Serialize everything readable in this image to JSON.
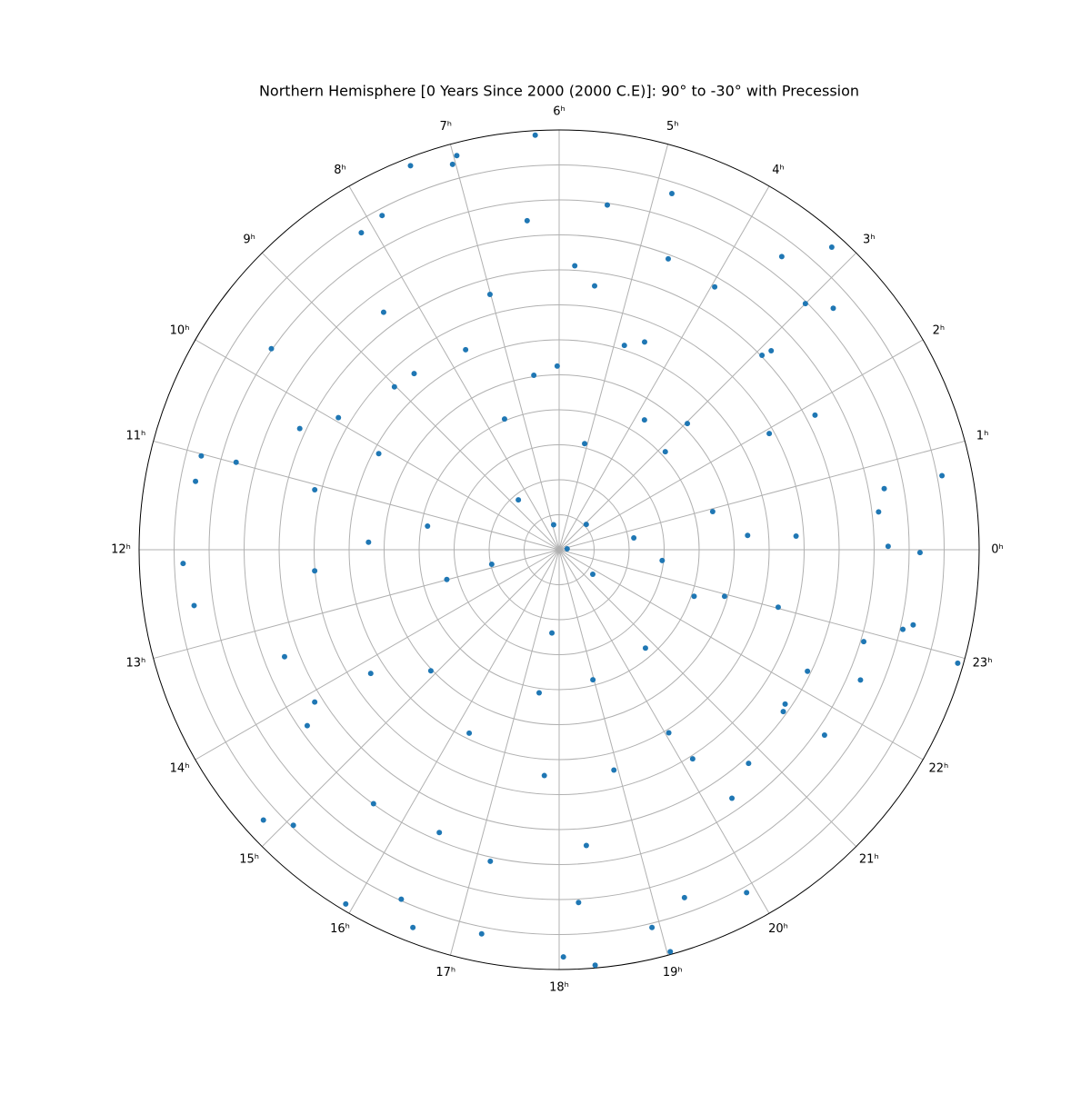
{
  "chart_data": {
    "type": "scatter",
    "projection": "polar",
    "title": "Northern Hemisphere [0 Years Since 2000 (2000 C.E)]: 90° to -30° with Precession",
    "color": "#1f77b4",
    "grid": true,
    "xlim": [
      0,
      24
    ],
    "ylim": [
      90,
      -30
    ],
    "xticks": [
      {
        "value": 0,
        "label": "0ʰ"
      },
      {
        "value": 1,
        "label": "1ʰ"
      },
      {
        "value": 2,
        "label": "2ʰ"
      },
      {
        "value": 3,
        "label": "3ʰ"
      },
      {
        "value": 4,
        "label": "4ʰ"
      },
      {
        "value": 5,
        "label": "5ʰ"
      },
      {
        "value": 6,
        "label": "6ʰ"
      },
      {
        "value": 7,
        "label": "7ʰ"
      },
      {
        "value": 8,
        "label": "8ʰ"
      },
      {
        "value": 9,
        "label": "9ʰ"
      },
      {
        "value": 10,
        "label": "10ʰ"
      },
      {
        "value": 11,
        "label": "11ʰ"
      },
      {
        "value": 12,
        "label": "12ʰ"
      },
      {
        "value": 13,
        "label": "13ʰ"
      },
      {
        "value": 14,
        "label": "14ʰ"
      },
      {
        "value": 15,
        "label": "15ʰ"
      },
      {
        "value": 16,
        "label": "16ʰ"
      },
      {
        "value": 17,
        "label": "17ʰ"
      },
      {
        "value": 18,
        "label": "18ʰ"
      },
      {
        "value": 19,
        "label": "19ʰ"
      },
      {
        "value": 20,
        "label": "20ʰ"
      },
      {
        "value": 21,
        "label": "21ʰ"
      },
      {
        "value": 22,
        "label": "22ʰ"
      },
      {
        "value": 23,
        "label": "23ʰ"
      }
    ],
    "yticks": [
      80,
      70,
      60,
      50,
      40,
      30,
      20,
      10,
      0,
      -10,
      -20
    ],
    "x": [
      6.22,
      5.47,
      4.83,
      4.63,
      3.52,
      3.2,
      3.0,
      2.76,
      1.85,
      0.73,
      0.71,
      0.45,
      0.04,
      23.97,
      22.94,
      23.2,
      22.88,
      22.44,
      21.67,
      19.91,
      19.03,
      18.33,
      18.04,
      18.21,
      17.24,
      16.59,
      15.93,
      14.83,
      12.14,
      12.58,
      11.29,
      11.02,
      10.99,
      9.67,
      8.13,
      7.41,
      7.03,
      6.97,
      6.37,
      7.01,
      8.43,
      10.33,
      11.08,
      12.33,
      13.42,
      14.33,
      15.59,
      16.47,
      17.17,
      18.35,
      17.75,
      18.93,
      20.17,
      20.32,
      20.77,
      21.71,
      22.26,
      23.02,
      0.22,
      0.29,
      1.93,
      2.92,
      3.96,
      4.51,
      4.82,
      5.79,
      6.55,
      7.67,
      8.63,
      10.13,
      11.32,
      12.99,
      14.89,
      16.26,
      17.47,
      18.97,
      20.75,
      22.73,
      23.6,
      0.6,
      3.78,
      5.1,
      8.62,
      12.81,
      17.67,
      21.59,
      0.42,
      6.83,
      2.87,
      2.97,
      2.85,
      0.93,
      22.95,
      20.06,
      14.22,
      11.85,
      9.02,
      7.51,
      6.04,
      9.94,
      7.86,
      14.13,
      15.07,
      16.38,
      18.92,
      19.32,
      21.61,
      23.13,
      2.88,
      5.49
    ],
    "values": [
      -28.7,
      -9.5,
      -16.8,
      1.2,
      -15.2,
      -26.4,
      -9.5,
      -14.4,
      7.4,
      -21.4,
      -4.5,
      -1.9,
      -4.0,
      -13.1,
      -28.4,
      -13.4,
      -0.9,
      -3.8,
      -2.5,
      -21.7,
      -29.2,
      -29.2,
      -26.4,
      -11.0,
      -22.0,
      -25.8,
      -28.2,
      -24.5,
      -17.5,
      -15.5,
      -15.7,
      -15.7,
      -5.6,
      -10.3,
      -16.8,
      -27.7,
      -24.3,
      -26.4,
      -4.5,
      14.4,
      5.6,
      8.2,
      18.1,
      19.9,
      5.8,
      2.2,
      0.1,
      2.2,
      -1.2,
      5.1,
      25.3,
      25.1,
      19.1,
      3.5,
      8.4,
      11.8,
      11.0,
      25.3,
      22.2,
      36.0,
      21.4,
      9.7,
      2.7,
      25.8,
      28.7,
      8.7,
      39.6,
      26.9,
      24.8,
      31.6,
      51.8,
      56.8,
      39.6,
      31.6,
      48.7,
      51.6,
      52.6,
      49.2,
      60.4,
      68.4,
      45.6,
      58.8,
      71.6,
      70.3,
      66.1,
      78.1,
      87.7,
      82.7,
      79.4,
      38.6,
      48.7,
      44.8,
      40.9,
      29.0,
      25.6,
      35.5,
      23.8,
      49.5,
      37.5,
      16.5,
      -18.1,
      7.7,
      -19.4,
      -19.6,
      -21.2,
      -15.7,
      11.0,
      -10.8,
      6.9,
      13.9
    ]
  }
}
